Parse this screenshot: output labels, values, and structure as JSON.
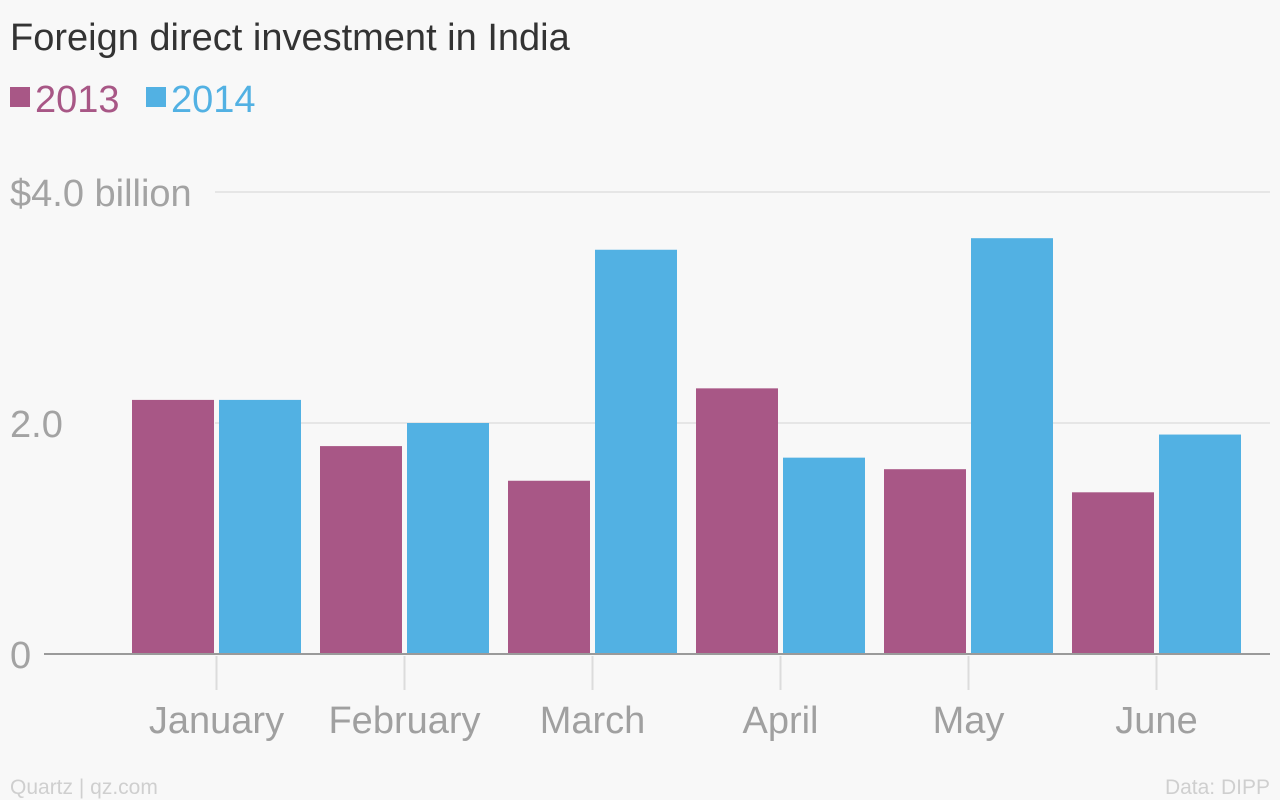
{
  "chart_data": {
    "type": "bar",
    "title": "Foreign direct investment in India",
    "categories": [
      "January",
      "February",
      "March",
      "April",
      "May",
      "June"
    ],
    "series": [
      {
        "name": "2013",
        "color": "#a85786",
        "values": [
          2.2,
          1.8,
          1.5,
          2.3,
          1.6,
          1.4
        ]
      },
      {
        "name": "2014",
        "color": "#52b1e3",
        "values": [
          2.2,
          2.0,
          3.5,
          1.7,
          3.6,
          1.9
        ]
      }
    ],
    "ylim": [
      0,
      4
    ],
    "yticks": [
      {
        "value": 0,
        "label": "0"
      },
      {
        "value": 2,
        "label": "2.0"
      },
      {
        "value": 4,
        "label": "$4.0 billion"
      }
    ],
    "legend_position": "top-left",
    "grid": true
  },
  "footer": {
    "source_left": "Quartz | qz.com",
    "source_right": "Data: DIPP"
  }
}
